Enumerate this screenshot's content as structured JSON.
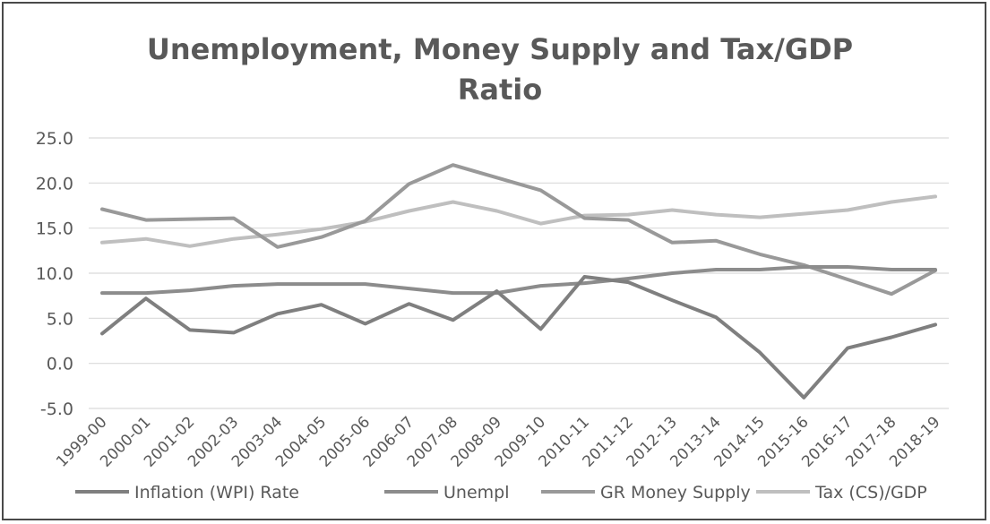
{
  "chart_data": {
    "type": "line",
    "title": [
      "Unemployment, Money Supply and Tax/GDP",
      "Ratio"
    ],
    "xlabel": "",
    "ylabel": "",
    "ylim": [
      -5,
      25
    ],
    "yticks": [
      "25.0",
      "20.0",
      "15.0",
      "10.0",
      "5.0",
      "0.0",
      "-5.0"
    ],
    "ytick_values": [
      25,
      20,
      15,
      10,
      5,
      0,
      -5
    ],
    "grid": true,
    "legend_position": "bottom",
    "categories": [
      "1999-00",
      "2000-01",
      "2001-02",
      "2002-03",
      "2003-04",
      "2004-05",
      "2005-06",
      "2006-07",
      "2007-08",
      "2008-09",
      "2009-10",
      "2010-11",
      "2011-12",
      "2012-13",
      "2013-14",
      "2014-15",
      "2015-16",
      "2016-17",
      "2017-18",
      "2018-19"
    ],
    "series": [
      {
        "name": "Inflation (WPI) Rate",
        "color": "#7f7f7f",
        "values": [
          3.3,
          7.2,
          3.7,
          3.4,
          5.5,
          6.5,
          4.4,
          6.6,
          4.8,
          8.0,
          3.8,
          9.6,
          9.0,
          7.0,
          5.1,
          1.2,
          -3.8,
          1.7,
          2.9,
          4.3
        ]
      },
      {
        "name": "Unempl",
        "color": "#8c8c8c",
        "values": [
          7.8,
          7.8,
          8.1,
          8.6,
          8.8,
          8.8,
          8.8,
          8.3,
          7.8,
          7.8,
          8.6,
          8.9,
          9.4,
          10.0,
          10.4,
          10.4,
          10.7,
          10.7,
          10.4,
          10.4
        ]
      },
      {
        "name": "GR Money Supply",
        "color": "#999999",
        "values": [
          17.1,
          15.9,
          16.0,
          16.1,
          12.9,
          14.0,
          15.8,
          19.9,
          22.0,
          20.6,
          19.2,
          16.1,
          15.9,
          13.4,
          13.6,
          12.1,
          10.9,
          9.3,
          7.7,
          10.3
        ]
      },
      {
        "name": "Tax (CS)/GDP",
        "color": "#bfbfbf",
        "values": [
          13.4,
          13.8,
          13.0,
          13.8,
          14.3,
          14.9,
          15.7,
          16.9,
          17.9,
          16.9,
          15.5,
          16.4,
          16.5,
          17.0,
          16.5,
          16.2,
          16.6,
          17.0,
          17.9,
          18.5
        ]
      }
    ]
  }
}
